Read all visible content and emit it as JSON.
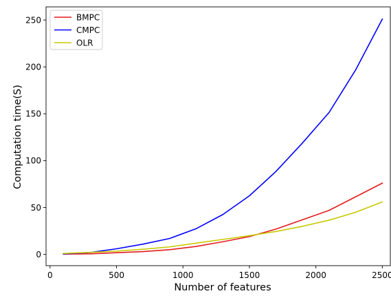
{
  "chart_data": {
    "type": "line",
    "title": "",
    "xlabel": "Number of features",
    "ylabel": "Computation time(S)",
    "xlim": [
      -30,
      2560
    ],
    "ylim": [
      -12,
      264
    ],
    "xticks": [
      0,
      500,
      1000,
      1500,
      2000,
      2500
    ],
    "yticks": [
      0,
      50,
      100,
      150,
      200,
      250
    ],
    "grid": false,
    "legend_position": "top-left",
    "series": [
      {
        "name": "BMPC",
        "color": "#e41a1c",
        "x": [
          100,
          300,
          500,
          700,
          900,
          1100,
          1300,
          1500,
          1700,
          1900,
          2100,
          2300,
          2500
        ],
        "y": [
          0.3,
          0.6,
          1.8,
          3.0,
          5.0,
          8.5,
          13.5,
          19.0,
          27.0,
          37.0,
          47.0,
          61.5,
          76.0
        ]
      },
      {
        "name": "CMPC",
        "color": "#0000ff",
        "x": [
          100,
          300,
          500,
          700,
          900,
          1100,
          1300,
          1500,
          1700,
          1900,
          2100,
          2300,
          2500
        ],
        "y": [
          0.5,
          2.0,
          6.0,
          11.0,
          17.0,
          27.5,
          42.5,
          62.5,
          88.5,
          119.0,
          151.5,
          197.0,
          251.0
        ]
      },
      {
        "name": "OLR",
        "color": "#c8c800",
        "x": [
          100,
          300,
          500,
          700,
          900,
          1100,
          1300,
          1500,
          1700,
          1900,
          2100,
          2300,
          2500
        ],
        "y": [
          1.0,
          2.2,
          3.5,
          5.5,
          8.0,
          12.0,
          16.0,
          20.0,
          24.5,
          30.0,
          36.5,
          45.0,
          56.0
        ]
      }
    ]
  }
}
